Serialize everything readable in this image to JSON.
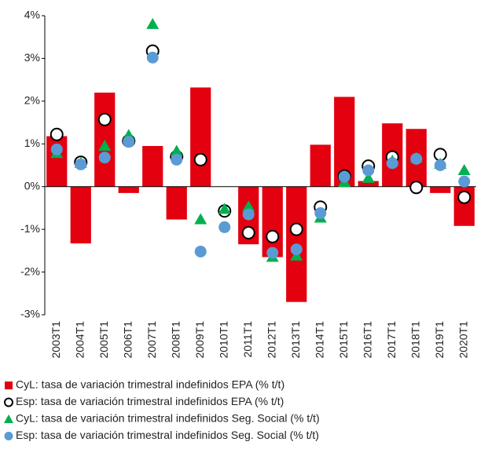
{
  "chart_data": {
    "type": "bar",
    "categories": [
      "2003T1",
      "2004T1",
      "2005T1",
      "2006T1",
      "2007T1",
      "2008T1",
      "2009T1",
      "2010T1",
      "2011T1",
      "2012T1",
      "2013T1",
      "2014T1",
      "2015T1",
      "2016T1",
      "2017T1",
      "2018T1",
      "2019T1",
      "2020T1"
    ],
    "ylim": [
      -3,
      4
    ],
    "yticks": [
      {
        "value": -3,
        "label": "-3%"
      },
      {
        "value": -2,
        "label": "-2%"
      },
      {
        "value": -1,
        "label": "-1%"
      },
      {
        "value": 0,
        "label": "0%"
      },
      {
        "value": 1,
        "label": "1%"
      },
      {
        "value": 2,
        "label": "2%"
      },
      {
        "value": 3,
        "label": "3%"
      },
      {
        "value": 4,
        "label": "4%"
      }
    ],
    "grid": false,
    "legend": "bottom",
    "series": [
      {
        "name": "CyL: tasa de variación trimestral indefinidos EPA (% t/t)",
        "color": "#e3000f",
        "marker": "bar",
        "values": [
          1.18,
          -1.33,
          2.2,
          -0.15,
          0.95,
          -0.77,
          2.32,
          0,
          -1.35,
          -1.65,
          -2.7,
          0.98,
          2.1,
          0.13,
          1.48,
          1.35,
          -0.15,
          -0.92
        ]
      },
      {
        "name": "Esp: tasa de variación trimestral indefinidos EPA (% t/t)",
        "color": "#000000",
        "marker": "circle-open",
        "values": [
          1.22,
          0.57,
          1.57,
          1.07,
          3.17,
          0.7,
          0.63,
          -0.57,
          -1.08,
          -1.17,
          -1.0,
          -0.48,
          0.25,
          0.48,
          0.69,
          -0.02,
          0.75,
          -0.25
        ]
      },
      {
        "name": "CyL: tasa de variación trimestral indefinidos Seg. Social (% t/t)",
        "color": "#00b050",
        "marker": "triangle",
        "values": [
          0.78,
          0.55,
          0.95,
          1.2,
          3.8,
          0.83,
          -0.77,
          -0.53,
          -0.47,
          -1.65,
          -1.62,
          -0.73,
          0.1,
          0.2,
          0.6,
          0.67,
          0.53,
          0.38
        ]
      },
      {
        "name": "Esp: tasa de variación trimestral indefinidos Seg. Social (% t/t)",
        "color": "#5b9bd5",
        "marker": "circle",
        "values": [
          0.87,
          0.52,
          0.68,
          1.05,
          3.02,
          0.63,
          -1.52,
          -0.95,
          -0.65,
          -1.55,
          -1.47,
          -0.62,
          0.23,
          0.38,
          0.55,
          0.65,
          0.5,
          0.12
        ]
      }
    ]
  }
}
